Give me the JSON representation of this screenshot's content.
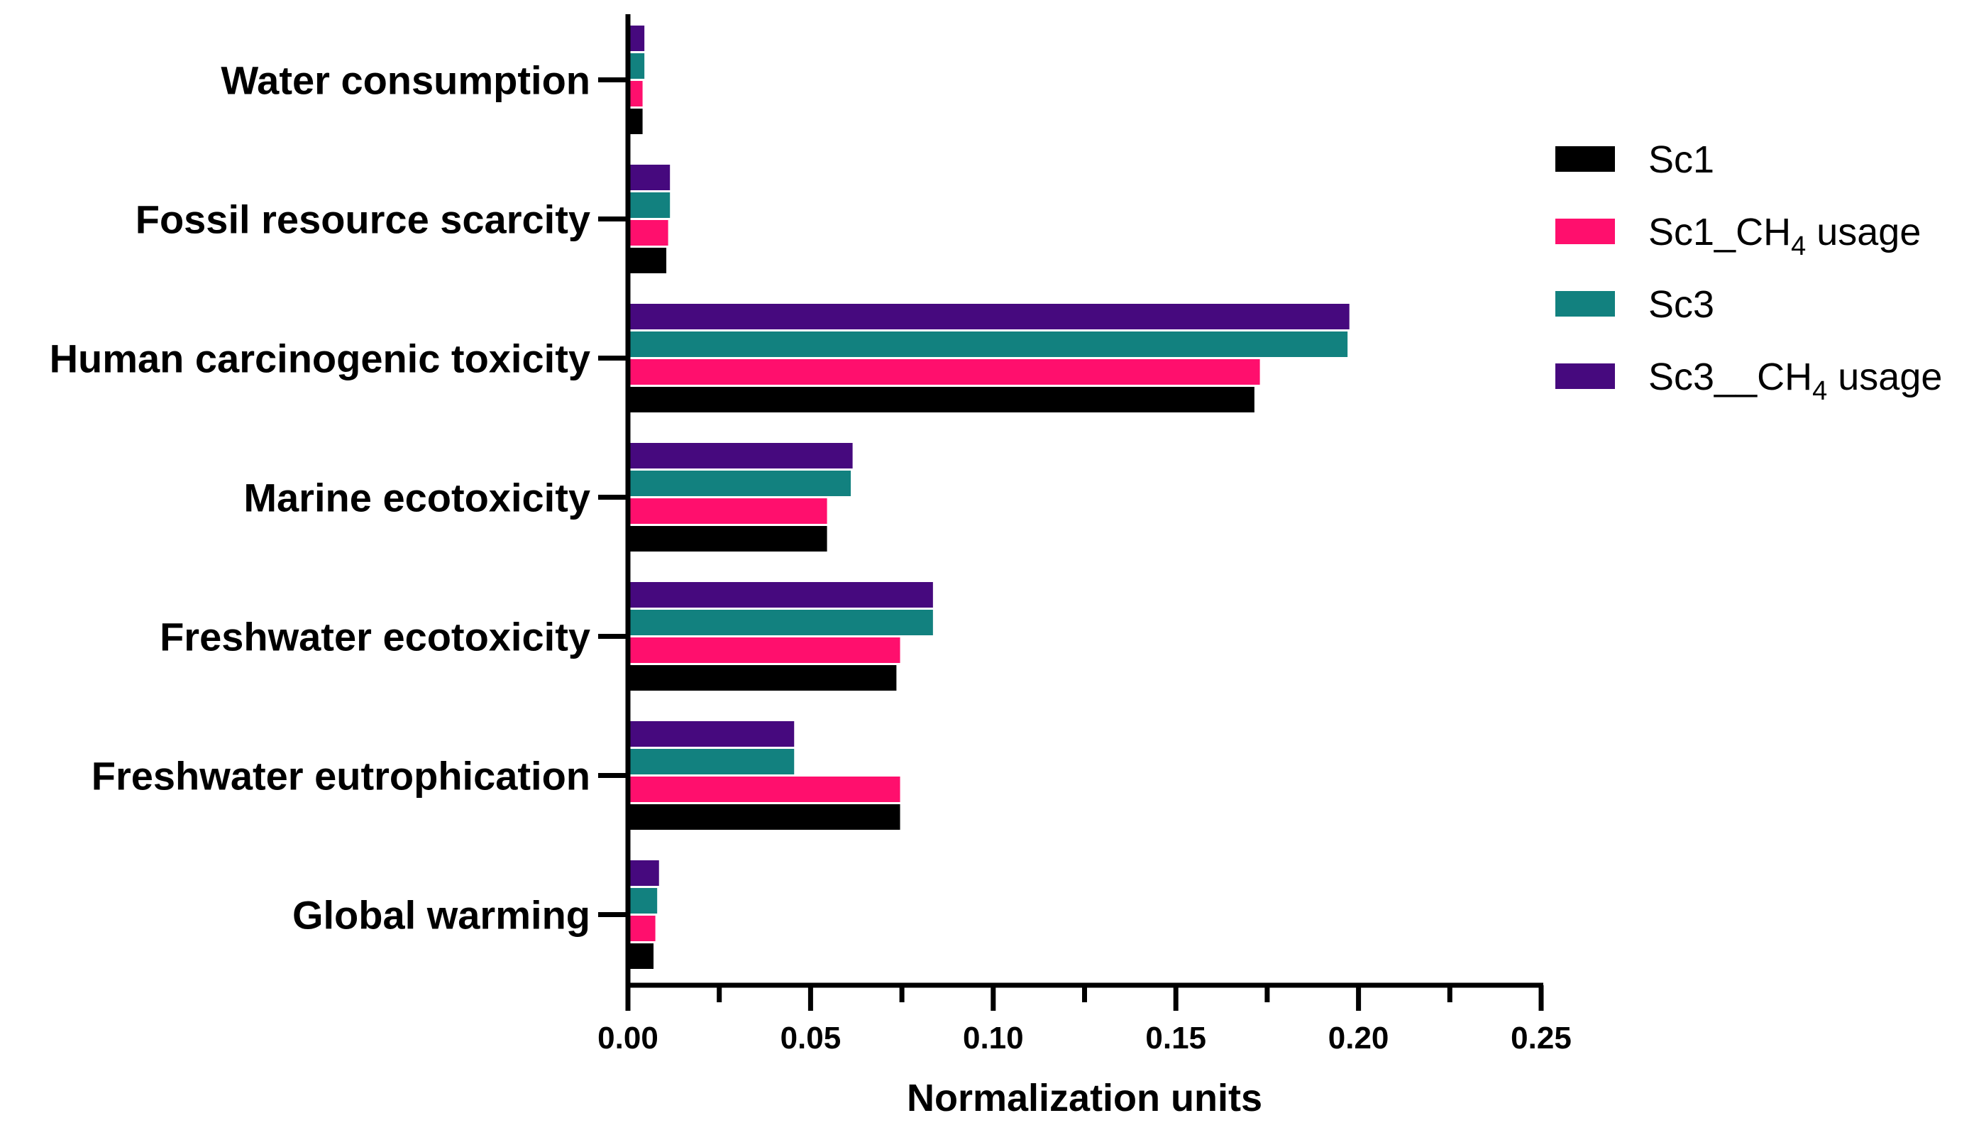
{
  "chart_data": {
    "type": "bar",
    "orientation": "horizontal",
    "title": "",
    "xlabel": "Normalization units",
    "ylabel": "",
    "xlim": [
      0,
      0.25
    ],
    "x_major_ticks": [
      0.0,
      0.05,
      0.1,
      0.15,
      0.2,
      0.25
    ],
    "x_tick_labels": [
      "0.00",
      "0.05",
      "0.10",
      "0.15",
      "0.20",
      "0.25"
    ],
    "x_minor_ticks": [
      0.025,
      0.075,
      0.125,
      0.175,
      0.225
    ],
    "grid": false,
    "legend_position": "top-right",
    "categories": [
      "Water consumption",
      "Fossil resource scarcity",
      "Human carcinogenic toxicity",
      "Marine ecotoxicity",
      "Freshwater ecotoxicity",
      "Freshwater eutrophication",
      "Global warming"
    ],
    "series": [
      {
        "name": "Sc1",
        "legend_main": "Sc1",
        "legend_sub": "",
        "legend_suffix": "",
        "color": "#000000",
        "values": [
          0.004,
          0.0105,
          0.1715,
          0.0545,
          0.0735,
          0.0745,
          0.007
        ]
      },
      {
        "name": "Sc1_CH4 usage",
        "legend_main": "Sc1_CH",
        "legend_sub": "4",
        "legend_suffix": " usage",
        "color": "#ff0f6d",
        "values": [
          0.004,
          0.011,
          0.173,
          0.0545,
          0.0745,
          0.0745,
          0.0075
        ]
      },
      {
        "name": "Sc3",
        "legend_main": "Sc3",
        "legend_sub": "",
        "legend_suffix": "",
        "color": "#12817f",
        "values": [
          0.0045,
          0.0115,
          0.197,
          0.061,
          0.0835,
          0.0455,
          0.008
        ]
      },
      {
        "name": "Sc3__CH4 usage",
        "legend_main": "Sc3__CH",
        "legend_sub": "4",
        "legend_suffix": " usage",
        "color": "#46097e",
        "values": [
          0.0045,
          0.0115,
          0.1975,
          0.0615,
          0.0835,
          0.0455,
          0.0085
        ]
      }
    ]
  }
}
